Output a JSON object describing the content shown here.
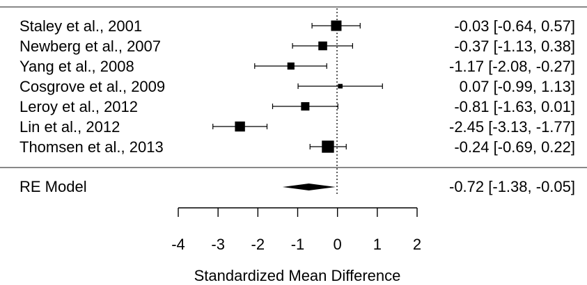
{
  "chart_data": {
    "type": "forest",
    "xlabel": "Standardized Mean Difference",
    "xlim": [
      -4,
      2
    ],
    "xticks": [
      -4,
      -3,
      -2,
      -1,
      0,
      1,
      2
    ],
    "reference_line": 0,
    "studies": [
      {
        "label": "Staley et al., 2001",
        "estimate": -0.03,
        "ci_low": -0.64,
        "ci_high": 0.57,
        "ci_text": "-0.03 [-0.64,  0.57]",
        "weight": 1.0
      },
      {
        "label": "Newberg et al., 2007",
        "estimate": -0.37,
        "ci_low": -1.13,
        "ci_high": 0.38,
        "ci_text": "-0.37 [-1.13,  0.38]",
        "weight": 0.8
      },
      {
        "label": "Yang et al., 2008",
        "estimate": -1.17,
        "ci_low": -2.08,
        "ci_high": -0.27,
        "ci_text": "-1.17 [-2.08, -0.27]",
        "weight": 0.6
      },
      {
        "label": "Cosgrove et al., 2009",
        "estimate": 0.07,
        "ci_low": -0.99,
        "ci_high": 1.13,
        "ci_text": "0.07 [-0.99,  1.13]",
        "weight": 0.3
      },
      {
        "label": "Leroy et al., 2012",
        "estimate": -0.81,
        "ci_low": -1.63,
        "ci_high": 0.01,
        "ci_text": "-0.81 [-1.63,  0.01]",
        "weight": 0.75
      },
      {
        "label": "Lin et al., 2012",
        "estimate": -2.45,
        "ci_low": -3.13,
        "ci_high": -1.77,
        "ci_text": "-2.45 [-3.13, -1.77]",
        "weight": 0.95
      },
      {
        "label": "Thomsen et al., 2013",
        "estimate": -0.24,
        "ci_low": -0.69,
        "ci_high": 0.22,
        "ci_text": "-0.24 [-0.69,  0.22]",
        "weight": 1.2
      }
    ],
    "summary": {
      "label": "RE Model",
      "estimate": -0.72,
      "ci_low": -1.38,
      "ci_high": -0.05,
      "ci_text": "-0.72 [-1.38, -0.05]"
    }
  }
}
